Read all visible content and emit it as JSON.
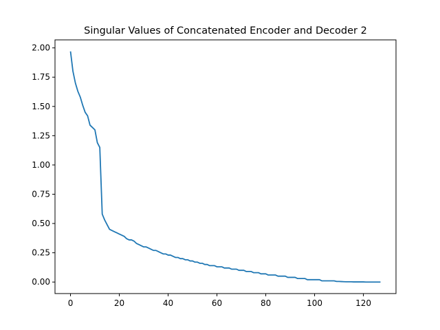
{
  "chart_data": {
    "type": "line",
    "title": "Singular Values of Concatenated Encoder and Decoder 2",
    "xlabel": "",
    "ylabel": "",
    "xlim": [
      -6.35,
      133.35
    ],
    "ylim": [
      -0.0985,
      2.0685
    ],
    "grid": false,
    "legend": "none",
    "xticks": [
      0,
      20,
      40,
      60,
      80,
      100,
      120
    ],
    "xtick_labels": [
      "0",
      "20",
      "40",
      "60",
      "80",
      "100",
      "120"
    ],
    "yticks": [
      0.0,
      0.25,
      0.5,
      0.75,
      1.0,
      1.25,
      1.5,
      1.75,
      2.0
    ],
    "ytick_labels": [
      "0.00",
      "0.25",
      "0.50",
      "0.75",
      "1.00",
      "1.25",
      "1.50",
      "1.75",
      "2.00"
    ],
    "colors": {
      "series": "#1f77b4"
    },
    "series": [
      {
        "x": [
          0,
          1,
          2,
          3,
          4,
          5,
          6,
          7,
          8,
          9,
          10,
          11,
          12,
          13,
          14,
          15,
          16,
          17,
          18,
          19,
          20,
          21,
          22,
          23,
          24,
          25,
          26,
          27,
          28,
          29,
          30,
          31,
          32,
          33,
          34,
          35,
          36,
          37,
          38,
          39,
          40,
          41,
          42,
          43,
          44,
          45,
          46,
          47,
          48,
          49,
          50,
          51,
          52,
          53,
          54,
          55,
          56,
          57,
          58,
          59,
          60,
          61,
          62,
          63,
          64,
          65,
          66,
          67,
          68,
          69,
          70,
          71,
          72,
          73,
          74,
          75,
          76,
          77,
          78,
          79,
          80,
          81,
          82,
          83,
          84,
          85,
          86,
          87,
          88,
          89,
          90,
          91,
          92,
          93,
          94,
          95,
          96,
          97,
          98,
          99,
          100,
          101,
          102,
          103,
          104,
          105,
          106,
          107,
          108,
          109,
          110,
          111,
          112,
          113,
          114,
          115,
          116,
          117,
          118,
          119,
          120,
          121,
          122,
          123,
          124,
          125,
          126,
          127
        ],
        "values": [
          1.97,
          1.8,
          1.7,
          1.63,
          1.58,
          1.51,
          1.45,
          1.42,
          1.34,
          1.32,
          1.3,
          1.19,
          1.15,
          0.58,
          0.53,
          0.49,
          0.45,
          0.44,
          0.43,
          0.42,
          0.41,
          0.4,
          0.39,
          0.37,
          0.36,
          0.36,
          0.35,
          0.33,
          0.32,
          0.31,
          0.3,
          0.3,
          0.29,
          0.28,
          0.27,
          0.27,
          0.26,
          0.25,
          0.24,
          0.24,
          0.23,
          0.23,
          0.22,
          0.21,
          0.21,
          0.2,
          0.2,
          0.19,
          0.19,
          0.18,
          0.18,
          0.17,
          0.17,
          0.16,
          0.16,
          0.15,
          0.15,
          0.14,
          0.14,
          0.14,
          0.13,
          0.13,
          0.13,
          0.12,
          0.12,
          0.12,
          0.11,
          0.11,
          0.11,
          0.1,
          0.1,
          0.1,
          0.09,
          0.09,
          0.09,
          0.08,
          0.08,
          0.08,
          0.07,
          0.07,
          0.07,
          0.06,
          0.06,
          0.06,
          0.06,
          0.05,
          0.05,
          0.05,
          0.05,
          0.04,
          0.04,
          0.04,
          0.04,
          0.03,
          0.03,
          0.03,
          0.03,
          0.02,
          0.02,
          0.02,
          0.02,
          0.02,
          0.02,
          0.01,
          0.01,
          0.01,
          0.01,
          0.01,
          0.01,
          0.005,
          0.005,
          0.004,
          0.003,
          0.002,
          0.002,
          0.002,
          0.001,
          0.001,
          0.001,
          0.001,
          0.001,
          0.0,
          0.0,
          0.0,
          0.0,
          0.0,
          0.0,
          0.0
        ]
      }
    ]
  }
}
